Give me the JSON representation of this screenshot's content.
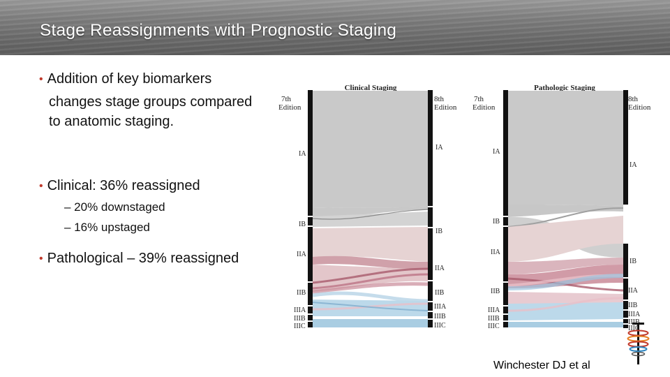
{
  "slide": {
    "title": "Stage Reassignments with Prognostic Staging",
    "bullets": [
      {
        "lines": [
          "Addition of key biomarkers",
          "changes stage groups compared",
          "to anatomic staging."
        ]
      },
      {
        "lines": [
          "Clinical: 36% reassigned"
        ],
        "subs": [
          "– 20% downstaged",
          "– 16% upstaged"
        ]
      },
      {
        "lines": [
          "Pathological – 39% reassigned"
        ]
      }
    ],
    "citation": "Winchester DJ et al"
  },
  "diagrams": {
    "clinical": {
      "title": "Clinical Staging",
      "left_header": [
        "7th",
        "Edition"
      ],
      "right_header": [
        "8th",
        "Edition"
      ],
      "left_stages": [
        "IA",
        "IB",
        "IIA",
        "IIB",
        "IIIA",
        "IIIB",
        "IIIC"
      ],
      "right_stages": [
        "IA",
        "IB",
        "IIA",
        "IIB",
        "IIIA",
        "IIIB",
        "IIIC"
      ]
    },
    "pathologic": {
      "title": "Pathologic Staging",
      "left_header": [
        "7th",
        "Edition"
      ],
      "right_header": [
        "8th",
        "Edition"
      ],
      "left_stages": [
        "IA",
        "IB",
        "IIA",
        "IIB",
        "IIIA",
        "IIIB",
        "IIIC"
      ],
      "right_stages": [
        "IA",
        "IB",
        "IIA",
        "IIB",
        "IIIA",
        "IIIB",
        "IIIC"
      ]
    }
  },
  "colors": {
    "stage_IA": "#c9c9c9",
    "stage_IB": "#cfcfcf",
    "stage_IIA": "#e6d3d3",
    "stage_IIB": "#c98a98",
    "stage_III": "#bcd9ea",
    "node_bar": "#111111"
  }
}
